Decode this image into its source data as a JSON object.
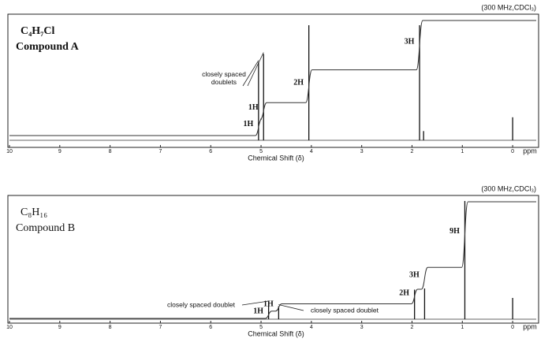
{
  "chart_data": [
    {
      "type": "nmr",
      "header": "(300 MHz,CDCl₃)",
      "formula": "C₄H₇Cl",
      "title": "Compound A",
      "xlabel": "Chemical Shift (δ)",
      "x_unit": "ppm",
      "xlim": [
        10,
        -0.5
      ],
      "xticks": [
        10,
        9,
        8,
        7,
        6,
        5,
        4,
        3,
        2,
        1,
        0
      ],
      "ylim": [
        0,
        100
      ],
      "peaks": {
        "x": [
          5.05,
          4.95,
          4.05,
          1.85,
          1.77,
          0
        ],
        "values": [
          68,
          75,
          100,
          100,
          8,
          20
        ]
      },
      "integrals": {
        "x": [
          5.05,
          4.95,
          4.05,
          1.85
        ],
        "values": [
          1,
          1,
          2,
          3
        ],
        "value_labels": [
          "1H",
          "1H",
          "2H",
          "3H"
        ]
      },
      "annotations": [
        "closely spaced\ndoublets"
      ]
    },
    {
      "type": "nmr",
      "header": "(300 MHz,CDCl₃)",
      "formula": "C₈H₁₆",
      "title": "Compound B",
      "xlabel": "Chemical Shift (δ)",
      "x_unit": "ppm",
      "xlim": [
        10,
        -0.5
      ],
      "xticks": [
        10,
        9,
        8,
        7,
        6,
        5,
        4,
        3,
        2,
        1,
        0
      ],
      "ylim": [
        0,
        100
      ],
      "peaks": {
        "x": [
          4.85,
          4.65,
          1.95,
          1.75,
          0.95,
          0
        ],
        "values": [
          14,
          11,
          25,
          26,
          100,
          18
        ]
      },
      "integrals": {
        "x": [
          4.85,
          4.65,
          1.95,
          1.75,
          0.95
        ],
        "values": [
          1,
          1,
          2,
          3,
          9
        ],
        "value_labels": [
          "1H",
          "1H",
          "2H",
          "3H",
          "9H"
        ]
      },
      "annotations": [
        "closely spaced doublet",
        "closely spaced doublet"
      ]
    }
  ]
}
